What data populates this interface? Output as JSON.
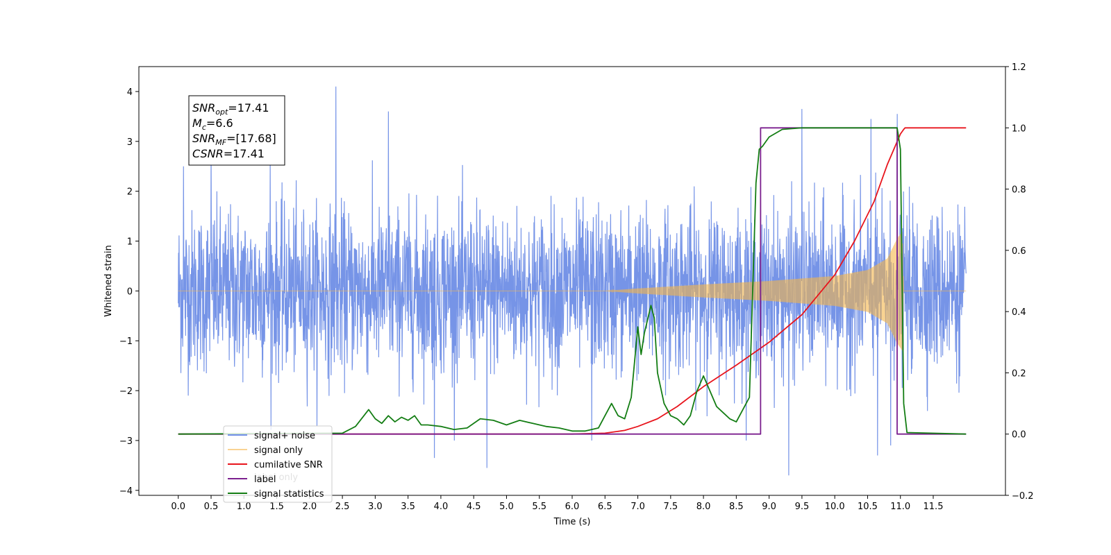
{
  "chart_data": {
    "type": "line",
    "xlabel": "Time (s)",
    "ylabel": "Whitened strain",
    "xlim": [
      -0.6,
      12.6
    ],
    "ylim": [
      -4.1,
      4.5
    ],
    "ylim_right": [
      -0.2,
      1.2
    ],
    "x_ticks": [
      0.0,
      0.5,
      1.0,
      1.5,
      2.0,
      2.5,
      3.0,
      3.5,
      4.0,
      4.5,
      5.0,
      5.5,
      6.0,
      6.5,
      7.0,
      7.5,
      8.0,
      8.5,
      9.0,
      9.5,
      10.0,
      10.5,
      11.0,
      11.5
    ],
    "x_tick_labels": [
      "0.0",
      "0.5",
      "1.0",
      "1.5",
      "2.0",
      "2.5",
      "3.0",
      "3.5",
      "4.0",
      "4.5",
      "5.0",
      "5.5",
      "6.0",
      "6.5",
      "7.0",
      "7.5",
      "8.0",
      "8.5",
      "9.0",
      "9.5",
      "10.0",
      "10.5",
      "11.0",
      "11.5"
    ],
    "y_ticks": [
      -4,
      -3,
      -2,
      -1,
      0,
      1,
      2,
      3,
      4
    ],
    "y_tick_labels": [
      "−4",
      "−3",
      "−2",
      "−1",
      "0",
      "1",
      "2",
      "3",
      "4"
    ],
    "y_ticks_right": [
      -0.2,
      0.0,
      0.2,
      0.4,
      0.6,
      0.8,
      1.0,
      1.2
    ],
    "y_tick_labels_right": [
      "−0.2",
      "0.0",
      "0.2",
      "0.4",
      "0.6",
      "0.8",
      "1.0",
      "1.2"
    ],
    "annotation": {
      "lines": [
        {
          "sym": "SNR",
          "sub": "opt",
          "value": "=17.41"
        },
        {
          "sym": "M",
          "sub": "c",
          "value": "=6.6"
        },
        {
          "sym": "SNR",
          "sub": "MF",
          "value": "=[17.68]"
        },
        {
          "sym": "CSNR",
          "sub": "",
          "value": "=17.41"
        }
      ]
    },
    "legend": {
      "placement": "lower-left",
      "entries": [
        "signal+ noise",
        "signal only",
        "cumilative SNR",
        "label",
        "signal statistics"
      ],
      "hidden_text": "label only"
    },
    "series": [
      {
        "name": "signal+ noise",
        "axis": "left",
        "color": "#6f8ee6",
        "kind": "noise",
        "x_range": [
          0.0,
          12.0
        ],
        "noise_std": 0.8,
        "peaks": [
          [
            0.08,
            2.5
          ],
          [
            0.5,
            2.8
          ],
          [
            1.4,
            2.6
          ],
          [
            2.4,
            4.1
          ],
          [
            3.2,
            3.6
          ],
          [
            3.9,
            -3.35
          ],
          [
            4.7,
            -3.55
          ],
          [
            6.3,
            -3.0
          ],
          [
            9.3,
            -3.7
          ],
          [
            9.5,
            3.65
          ],
          [
            10.65,
            -3.3
          ],
          [
            10.85,
            -3.1
          ],
          [
            10.95,
            3.55
          ],
          [
            10.55,
            3.45
          ]
        ]
      },
      {
        "name": "signal only",
        "axis": "left",
        "color": "#f5b64a",
        "kind": "chirp",
        "x_range": [
          0.0,
          12.0
        ],
        "amplitude_points": [
          [
            0.0,
            0.0
          ],
          [
            6.5,
            0.0
          ],
          [
            7.0,
            0.05
          ],
          [
            8.0,
            0.13
          ],
          [
            9.0,
            0.2
          ],
          [
            10.0,
            0.3
          ],
          [
            10.5,
            0.42
          ],
          [
            10.8,
            0.65
          ],
          [
            10.95,
            1.05
          ],
          [
            11.03,
            1.2
          ],
          [
            11.05,
            0.0
          ],
          [
            12.0,
            0.0
          ]
        ]
      },
      {
        "name": "cumilative SNR",
        "axis": "right",
        "color": "#e8141c",
        "x": [
          0.0,
          6.0,
          6.5,
          6.8,
          7.0,
          7.3,
          7.6,
          8.0,
          8.5,
          9.0,
          9.5,
          10.0,
          10.3,
          10.6,
          10.8,
          11.0,
          11.05,
          11.07,
          11.5,
          12.0
        ],
        "y": [
          0.0,
          0.0,
          0.003,
          0.012,
          0.025,
          0.05,
          0.09,
          0.155,
          0.225,
          0.3,
          0.39,
          0.52,
          0.63,
          0.76,
          0.88,
          0.98,
          0.995,
          1.0,
          1.0,
          1.0
        ]
      },
      {
        "name": "label",
        "axis": "right",
        "color": "#7b1f8e",
        "x": [
          0.0,
          8.87,
          8.87,
          10.95,
          10.95,
          12.0
        ],
        "y": [
          0.0,
          0.0,
          1.0,
          1.0,
          0.0,
          0.0
        ]
      },
      {
        "name": "signal statistics",
        "axis": "right",
        "color": "#137d13",
        "x": [
          0.0,
          2.5,
          2.7,
          2.9,
          3.0,
          3.1,
          3.2,
          3.3,
          3.4,
          3.5,
          3.6,
          3.7,
          3.8,
          4.0,
          4.2,
          4.4,
          4.6,
          4.8,
          5.0,
          5.2,
          5.4,
          5.6,
          5.8,
          6.0,
          6.2,
          6.4,
          6.5,
          6.6,
          6.7,
          6.8,
          6.9,
          7.0,
          7.05,
          7.1,
          7.2,
          7.25,
          7.3,
          7.4,
          7.5,
          7.6,
          7.7,
          7.8,
          7.9,
          8.0,
          8.1,
          8.2,
          8.3,
          8.4,
          8.5,
          8.6,
          8.7,
          8.8,
          8.85,
          8.9,
          9.0,
          9.2,
          9.5,
          10.0,
          10.5,
          10.8,
          10.9,
          10.95,
          11.0,
          11.05,
          11.1,
          12.0
        ],
        "y": [
          0.0,
          0.003,
          0.025,
          0.08,
          0.05,
          0.035,
          0.06,
          0.04,
          0.055,
          0.045,
          0.06,
          0.03,
          0.03,
          0.025,
          0.015,
          0.02,
          0.05,
          0.045,
          0.03,
          0.045,
          0.035,
          0.025,
          0.02,
          0.01,
          0.01,
          0.02,
          0.06,
          0.1,
          0.06,
          0.05,
          0.12,
          0.35,
          0.26,
          0.33,
          0.42,
          0.38,
          0.2,
          0.1,
          0.06,
          0.05,
          0.03,
          0.06,
          0.14,
          0.19,
          0.14,
          0.09,
          0.07,
          0.05,
          0.04,
          0.08,
          0.12,
          0.82,
          0.93,
          0.94,
          0.97,
          0.995,
          1.0,
          1.0,
          1.0,
          1.0,
          1.0,
          1.0,
          0.93,
          0.1,
          0.005,
          0.0
        ]
      }
    ]
  }
}
